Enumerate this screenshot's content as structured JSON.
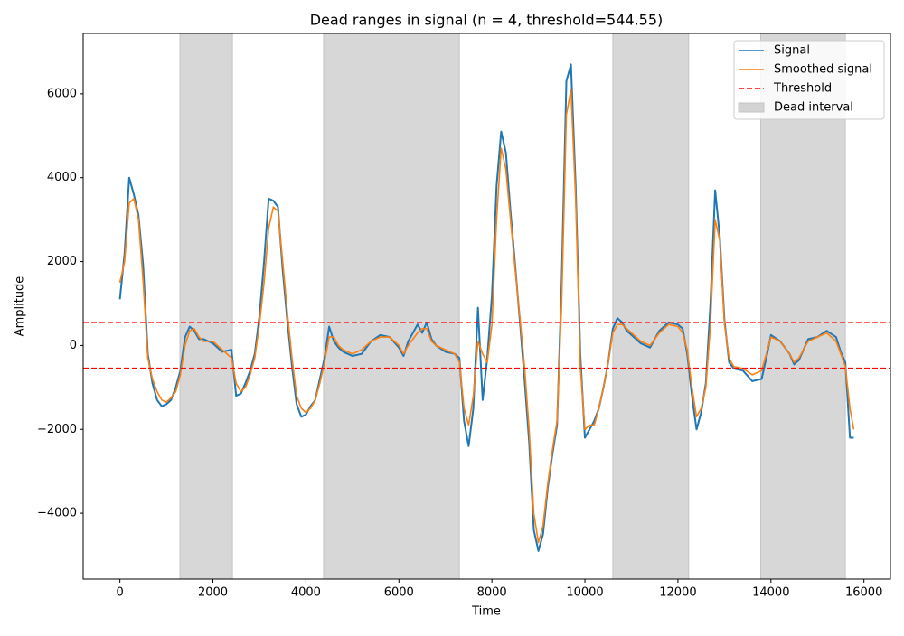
{
  "chart_data": {
    "type": "line",
    "title": "Dead ranges in signal (n = 4, threshold=544.55)",
    "xlabel": "Time",
    "ylabel": "Amplitude",
    "x": [
      0,
      100,
      200,
      300,
      400,
      500,
      600,
      700,
      800,
      900,
      1000,
      1100,
      1200,
      1300,
      1400,
      1500,
      1600,
      1700,
      1800,
      2000,
      2200,
      2400,
      2500,
      2600,
      2700,
      2800,
      2900,
      3000,
      3100,
      3200,
      3300,
      3400,
      3500,
      3600,
      3700,
      3800,
      3900,
      4000,
      4100,
      4200,
      4300,
      4400,
      4500,
      4600,
      4700,
      4800,
      5000,
      5200,
      5400,
      5600,
      5800,
      6000,
      6100,
      6200,
      6400,
      6500,
      6600,
      6700,
      6800,
      7000,
      7200,
      7300,
      7400,
      7500,
      7600,
      7700,
      7800,
      7900,
      8000,
      8100,
      8200,
      8300,
      8400,
      8500,
      8600,
      8700,
      8800,
      8900,
      9000,
      9100,
      9200,
      9300,
      9400,
      9500,
      9600,
      9700,
      9800,
      9900,
      10000,
      10100,
      10200,
      10300,
      10400,
      10500,
      10600,
      10700,
      10800,
      10900,
      11000,
      11200,
      11400,
      11600,
      11800,
      12000,
      12100,
      12200,
      12300,
      12400,
      12500,
      12600,
      12700,
      12800,
      12900,
      13000,
      13100,
      13200,
      13400,
      13600,
      13800,
      13900,
      14000,
      14200,
      14400,
      14500,
      14600,
      14800,
      15000,
      15200,
      15400,
      15500,
      15600,
      15700,
      15780
    ],
    "series": [
      {
        "name": "Signal",
        "color": "#1f77b4",
        "values": [
          1100,
          2200,
          4000,
          3600,
          3100,
          1900,
          -200,
          -900,
          -1300,
          -1450,
          -1400,
          -1300,
          -1000,
          -600,
          200,
          450,
          350,
          150,
          150,
          50,
          -150,
          -100,
          -1200,
          -1150,
          -900,
          -600,
          -200,
          700,
          2000,
          3500,
          3450,
          3300,
          1800,
          600,
          -500,
          -1400,
          -1700,
          -1650,
          -1450,
          -1300,
          -800,
          -300,
          450,
          100,
          -50,
          -150,
          -250,
          -200,
          100,
          250,
          200,
          -50,
          -250,
          100,
          500,
          300,
          550,
          150,
          0,
          -150,
          -200,
          -300,
          -1800,
          -2400,
          -1500,
          900,
          -1300,
          -300,
          1200,
          3800,
          5100,
          4600,
          3200,
          1900,
          600,
          -800,
          -2300,
          -4400,
          -4900,
          -4500,
          -3400,
          -2600,
          -1900,
          1500,
          6300,
          6700,
          3800,
          -200,
          -2200,
          -2000,
          -1800,
          -1500,
          -1000,
          -400,
          400,
          650,
          550,
          350,
          250,
          50,
          -50,
          350,
          550,
          500,
          400,
          -200,
          -1200,
          -2000,
          -1600,
          -900,
          1000,
          3700,
          2600,
          600,
          -400,
          -550,
          -600,
          -850,
          -800,
          -300,
          250,
          100,
          -200,
          -450,
          -350,
          150,
          200,
          350,
          200,
          -150,
          -400,
          -2200,
          -2200
        ]
      },
      {
        "name": "Smoothed signal",
        "color": "#ff7f0e",
        "values": [
          1500,
          2000,
          3400,
          3500,
          3000,
          1500,
          -300,
          -800,
          -1100,
          -1300,
          -1350,
          -1250,
          -1100,
          -700,
          0,
          350,
          400,
          200,
          100,
          100,
          -100,
          -300,
          -900,
          -1100,
          -1000,
          -700,
          -300,
          500,
          1500,
          2800,
          3300,
          3200,
          2000,
          800,
          -300,
          -1200,
          -1500,
          -1600,
          -1500,
          -1300,
          -900,
          -400,
          200,
          200,
          0,
          -100,
          -200,
          -100,
          100,
          200,
          200,
          0,
          -200,
          0,
          300,
          400,
          400,
          100,
          0,
          -100,
          -200,
          -400,
          -1500,
          -1900,
          -1200,
          100,
          -200,
          -400,
          500,
          3000,
          4700,
          4200,
          3000,
          1800,
          700,
          -500,
          -2000,
          -4000,
          -4700,
          -4300,
          -3300,
          -2500,
          -1800,
          1000,
          5500,
          6100,
          3500,
          -500,
          -2000,
          -1900,
          -1900,
          -1500,
          -1000,
          -400,
          300,
          500,
          500,
          400,
          300,
          100,
          0,
          300,
          500,
          450,
          300,
          -100,
          -1000,
          -1700,
          -1500,
          -1000,
          500,
          3000,
          2500,
          500,
          -300,
          -500,
          -550,
          -700,
          -600,
          -200,
          200,
          100,
          -200,
          -400,
          -300,
          100,
          200,
          300,
          100,
          -200,
          -500,
          -1500,
          -2000
        ]
      }
    ],
    "threshold": {
      "name": "Threshold",
      "color": "#ff0000",
      "values": [
        544.55,
        -544.55
      ]
    },
    "dead_intervals": {
      "name": "Dead interval",
      "color": "#d3d3d3",
      "ranges": [
        [
          1290,
          2420
        ],
        [
          4380,
          7300
        ],
        [
          10600,
          12230
        ],
        [
          13780,
          15600
        ]
      ]
    },
    "xlim": [
      -790,
      16570
    ],
    "ylim": [
      -5570,
      7440
    ],
    "xticks": [
      0,
      2000,
      4000,
      6000,
      8000,
      10000,
      12000,
      14000,
      16000
    ],
    "yticks": [
      {
        "value": -4000,
        "label": "−4000"
      },
      {
        "value": -2000,
        "label": "−2000"
      },
      0,
      2000,
      4000,
      6000
    ],
    "legend": "upper right"
  }
}
